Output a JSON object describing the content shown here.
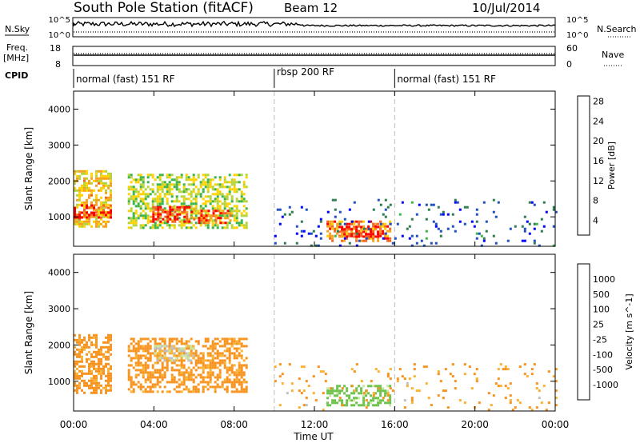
{
  "header": {
    "station": "South Pole Station (fitACF)",
    "beam": "Beam 12",
    "date": "10/Jul/2014"
  },
  "strip_labels": {
    "nsky": "N.Sky",
    "nsearch": "N.Search",
    "freq": "Freq.",
    "freq_unit": "[MHz]",
    "nave": "Nave",
    "cpid": "CPID",
    "nsky_ticks": [
      "10^5",
      "10^0"
    ],
    "nsearch_ticks": [
      "10^5",
      "10^0"
    ],
    "freq_ticks": [
      "18",
      "8"
    ],
    "nave_ticks": [
      "60",
      "0"
    ]
  },
  "modes": [
    {
      "label": "normal (fast) 151 RF",
      "start_hour": 0,
      "end_hour": 10
    },
    {
      "label": "rbsp 200 RF",
      "start_hour": 10,
      "end_hour": 16
    },
    {
      "label": "normal (fast) 151 RF",
      "start_hour": 16,
      "end_hour": 24
    }
  ],
  "colors": {
    "power": [
      "#0000ff",
      "#2050c0",
      "#2e7d50",
      "#3ab54a",
      "#b5d43a",
      "#ffd200",
      "#f7a21d",
      "#f26522",
      "#ff0000"
    ],
    "velocity": [
      "#e00000",
      "#f24a1d",
      "#f7931e",
      "#f9b233",
      "#c0c0c0",
      "#c8e6a0",
      "#6cc24a",
      "#2e8b57",
      "#1f4e9c",
      "#0a2a8c"
    ]
  },
  "chart_data": [
    {
      "type": "heatmap",
      "title": "Power",
      "xlabel": "Time UT",
      "ylabel": "Slant Range [km]",
      "xlim": [
        0,
        24
      ],
      "ylim": [
        180,
        4500
      ],
      "x_ticks": [
        "00:00",
        "04:00",
        "08:00",
        "12:00",
        "16:00",
        "20:00",
        "00:00"
      ],
      "y_ticks": [
        1000,
        2000,
        3000,
        4000
      ],
      "colorbar": {
        "label": "Power [dB]",
        "ticks": [
          4,
          8,
          12,
          16,
          20,
          24,
          28
        ]
      },
      "features": [
        {
          "t0": 0.0,
          "t1": 1.8,
          "r0": 700,
          "r1": 2300,
          "value": 20
        },
        {
          "t0": 0.0,
          "t1": 1.8,
          "r0": 950,
          "r1": 1350,
          "value": 28
        },
        {
          "t0": 2.7,
          "t1": 8.6,
          "r0": 700,
          "r1": 2200,
          "value": 16
        },
        {
          "t0": 3.8,
          "t1": 6.0,
          "r0": 850,
          "r1": 1300,
          "value": 28
        },
        {
          "t0": 6.2,
          "t1": 7.8,
          "r0": 850,
          "r1": 1200,
          "value": 26
        },
        {
          "t0": 12.6,
          "t1": 15.8,
          "r0": 350,
          "r1": 900,
          "value": 24
        },
        {
          "t0": 13.2,
          "t1": 15.2,
          "r0": 450,
          "r1": 750,
          "value": 28
        },
        {
          "t0": 10.0,
          "t1": 24.0,
          "r0": 200,
          "r1": 1500,
          "value": 6
        }
      ]
    },
    {
      "type": "heatmap",
      "title": "Velocity",
      "xlabel": "Time UT",
      "ylabel": "Slant Range [km]",
      "xlim": [
        0,
        24
      ],
      "ylim": [
        180,
        4500
      ],
      "x_ticks": [
        "00:00",
        "04:00",
        "08:00",
        "12:00",
        "16:00",
        "20:00",
        "00:00"
      ],
      "y_ticks": [
        1000,
        2000,
        3000,
        4000
      ],
      "colorbar": {
        "label": "Velocity [m s^-1]",
        "ticks": [
          "1000",
          "500",
          "100",
          "25",
          "-25",
          "-100",
          "-500",
          "-1000"
        ]
      },
      "features": [
        {
          "t0": 0.0,
          "t1": 1.8,
          "r0": 700,
          "r1": 2300,
          "value": -100
        },
        {
          "t0": 2.7,
          "t1": 8.6,
          "r0": 700,
          "r1": 2200,
          "value": -100
        },
        {
          "t0": 4.0,
          "t1": 6.0,
          "r0": 1600,
          "r1": 2000,
          "value": 0
        },
        {
          "t0": 12.6,
          "t1": 15.8,
          "r0": 350,
          "r1": 900,
          "value": 100
        },
        {
          "t0": 10.0,
          "t1": 24.0,
          "r0": 200,
          "r1": 1500,
          "value": -80
        }
      ]
    }
  ]
}
